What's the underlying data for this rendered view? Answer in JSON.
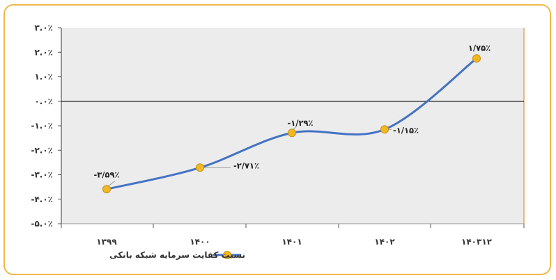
{
  "chart_data": {
    "type": "line",
    "categories": [
      "۱۳۹۹",
      "۱۴۰۰",
      "۱۴۰۱",
      "۱۴۰۲",
      "۱۴۰۳۱۲"
    ],
    "series": [
      {
        "name": "نسبت کفایت سرمایه شبکه بانکی",
        "values": [
          -3.59,
          -2.71,
          -1.29,
          -1.15,
          1.75
        ],
        "value_labels": [
          "-۳/۵۹٪",
          "-۲/۷۱٪",
          "-۱/۲۹٪",
          "-۱/۱۵٪",
          "۱/۷۵٪"
        ]
      }
    ],
    "ylim": [
      -5.0,
      3.0
    ],
    "yticks": [
      {
        "value": 3.0,
        "label": "۳.۰٪"
      },
      {
        "value": 2.0,
        "label": "۲.۰٪"
      },
      {
        "value": 1.0,
        "label": "۱.۰٪"
      },
      {
        "value": 0.0,
        "label": "۰.۰٪"
      },
      {
        "value": -1.0,
        "label": "-۱.۰٪"
      },
      {
        "value": -2.0,
        "label": "-۲.۰٪"
      },
      {
        "value": -3.0,
        "label": "-۳.۰٪"
      },
      {
        "value": -4.0,
        "label": "-۴.۰٪"
      },
      {
        "value": -5.0,
        "label": "-۵.۰٪"
      }
    ],
    "title": "",
    "xlabel": "",
    "ylabel": "",
    "grid": false,
    "legend_position": "bottom-center",
    "colors": {
      "line": "#4472c4",
      "marker_fill": "#f2b81f",
      "marker_stroke": "#c8901a",
      "plot_background": "#ececec",
      "frame_border": "#f0b84a",
      "right_axis": "#ed8a3a"
    }
  }
}
